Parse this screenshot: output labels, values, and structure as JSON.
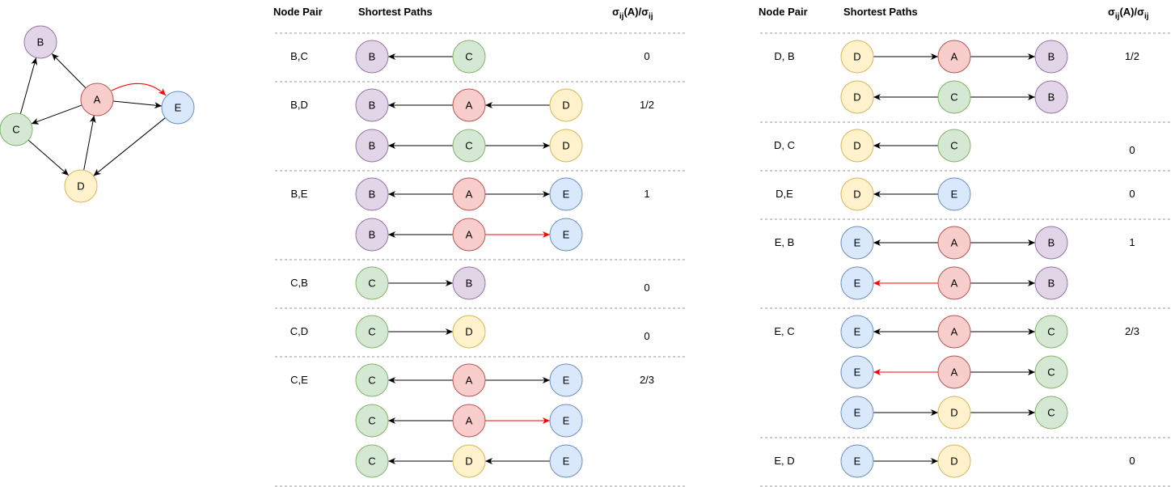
{
  "colors": {
    "A": {
      "fill": "#f8cecc",
      "stroke": "#b85450"
    },
    "B": {
      "fill": "#e1d5e7",
      "stroke": "#9673a6"
    },
    "C": {
      "fill": "#d5e8d4",
      "stroke": "#82b366"
    },
    "D": {
      "fill": "#fff2cc",
      "stroke": "#d6b656"
    },
    "E": {
      "fill": "#dae8fc",
      "stroke": "#6c8ebf"
    },
    "edge": "#000000",
    "highlight": "#ff0000",
    "separator": "#999999"
  },
  "graph": {
    "nodes": [
      "A",
      "B",
      "C",
      "D",
      "E"
    ],
    "edges": [
      {
        "from": "A",
        "to": "B"
      },
      {
        "from": "A",
        "to": "C"
      },
      {
        "from": "A",
        "to": "E"
      },
      {
        "from": "A",
        "to": "E",
        "highlight": true,
        "curved": true
      },
      {
        "from": "C",
        "to": "B"
      },
      {
        "from": "C",
        "to": "D"
      },
      {
        "from": "D",
        "to": "A"
      },
      {
        "from": "E",
        "to": "D"
      }
    ]
  },
  "tables": [
    {
      "headers": {
        "pair": "Node Pair",
        "paths": "Shortest Paths",
        "ratio_main": "σ",
        "ratio_sub": "ij",
        "ratio_mid": "(A)/σ",
        "ratio_sub2": "ij"
      },
      "rows": [
        {
          "pair": "B,C",
          "ratio": "0",
          "ratio_line": 0,
          "paths": [
            {
              "nodes": [
                "B",
                "C"
              ],
              "edges": [
                {
                  "dir": "left"
                }
              ]
            }
          ]
        },
        {
          "pair": "B,D",
          "ratio": "1/2",
          "ratio_line": 0,
          "paths": [
            {
              "nodes": [
                "B",
                "A",
                "D"
              ],
              "edges": [
                {
                  "dir": "left"
                },
                {
                  "dir": "left"
                }
              ]
            },
            {
              "nodes": [
                "B",
                "C",
                "D"
              ],
              "edges": [
                {
                  "dir": "left"
                },
                {
                  "dir": "right"
                }
              ]
            }
          ]
        },
        {
          "pair": "B,E",
          "ratio": "1",
          "ratio_line": 0,
          "paths": [
            {
              "nodes": [
                "B",
                "A",
                "E"
              ],
              "edges": [
                {
                  "dir": "left"
                },
                {
                  "dir": "right"
                }
              ]
            },
            {
              "nodes": [
                "B",
                "A",
                "E"
              ],
              "edges": [
                {
                  "dir": "left"
                },
                {
                  "dir": "right",
                  "highlight": true
                }
              ]
            }
          ]
        },
        {
          "pair": "C,B",
          "ratio": "0",
          "ratio_line": 0,
          "paths": [
            {
              "nodes": [
                "C",
                "B"
              ],
              "edges": [
                {
                  "dir": "right"
                }
              ]
            }
          ]
        },
        {
          "pair": "C,D",
          "ratio": "0",
          "ratio_line": 0,
          "paths": [
            {
              "nodes": [
                "C",
                "D"
              ],
              "edges": [
                {
                  "dir": "right"
                }
              ]
            }
          ]
        },
        {
          "pair": "C,E",
          "ratio": "2/3",
          "ratio_line": 0,
          "paths": [
            {
              "nodes": [
                "C",
                "A",
                "E"
              ],
              "edges": [
                {
                  "dir": "left"
                },
                {
                  "dir": "right"
                }
              ]
            },
            {
              "nodes": [
                "C",
                "A",
                "E"
              ],
              "edges": [
                {
                  "dir": "left"
                },
                {
                  "dir": "right",
                  "highlight": true
                }
              ]
            },
            {
              "nodes": [
                "C",
                "D",
                "E"
              ],
              "edges": [
                {
                  "dir": "left"
                },
                {
                  "dir": "left"
                }
              ]
            }
          ]
        }
      ]
    },
    {
      "headers": {
        "pair": "Node Pair",
        "paths": "Shortest Paths",
        "ratio_main": "σ",
        "ratio_sub": "ij",
        "ratio_mid": "(A)/σ",
        "ratio_sub2": "ij"
      },
      "rows": [
        {
          "pair": "D, B",
          "ratio": "1/2",
          "ratio_line": 0,
          "paths": [
            {
              "nodes": [
                "D",
                "A",
                "B"
              ],
              "edges": [
                {
                  "dir": "right"
                },
                {
                  "dir": "right"
                }
              ]
            },
            {
              "nodes": [
                "D",
                "C",
                "B"
              ],
              "edges": [
                {
                  "dir": "left"
                },
                {
                  "dir": "right"
                }
              ]
            }
          ]
        },
        {
          "pair": "D, C",
          "ratio": "0",
          "ratio_line": 0,
          "paths": [
            {
              "nodes": [
                "D",
                "C"
              ],
              "edges": [
                {
                  "dir": "left"
                }
              ]
            }
          ]
        },
        {
          "pair": "D,E",
          "ratio": "0",
          "ratio_line": 0,
          "paths": [
            {
              "nodes": [
                "D",
                "E"
              ],
              "edges": [
                {
                  "dir": "left"
                }
              ]
            }
          ]
        },
        {
          "pair": "E, B",
          "ratio": "1",
          "ratio_line": 0,
          "paths": [
            {
              "nodes": [
                "E",
                "A",
                "B"
              ],
              "edges": [
                {
                  "dir": "left"
                },
                {
                  "dir": "right"
                }
              ]
            },
            {
              "nodes": [
                "E",
                "A",
                "B"
              ],
              "edges": [
                {
                  "dir": "left",
                  "highlight": true
                },
                {
                  "dir": "right"
                }
              ]
            }
          ]
        },
        {
          "pair": "E, C",
          "ratio": "2/3",
          "ratio_line": 0,
          "paths": [
            {
              "nodes": [
                "E",
                "A",
                "C"
              ],
              "edges": [
                {
                  "dir": "left"
                },
                {
                  "dir": "right"
                }
              ]
            },
            {
              "nodes": [
                "E",
                "A",
                "C"
              ],
              "edges": [
                {
                  "dir": "left",
                  "highlight": true
                },
                {
                  "dir": "right"
                }
              ]
            },
            {
              "nodes": [
                "E",
                "D",
                "C"
              ],
              "edges": [
                {
                  "dir": "right"
                },
                {
                  "dir": "right"
                }
              ]
            }
          ]
        },
        {
          "pair": "E, D",
          "ratio": "0",
          "ratio_line": 0,
          "paths": [
            {
              "nodes": [
                "E",
                "D"
              ],
              "edges": [
                {
                  "dir": "right"
                }
              ]
            }
          ]
        }
      ]
    }
  ]
}
